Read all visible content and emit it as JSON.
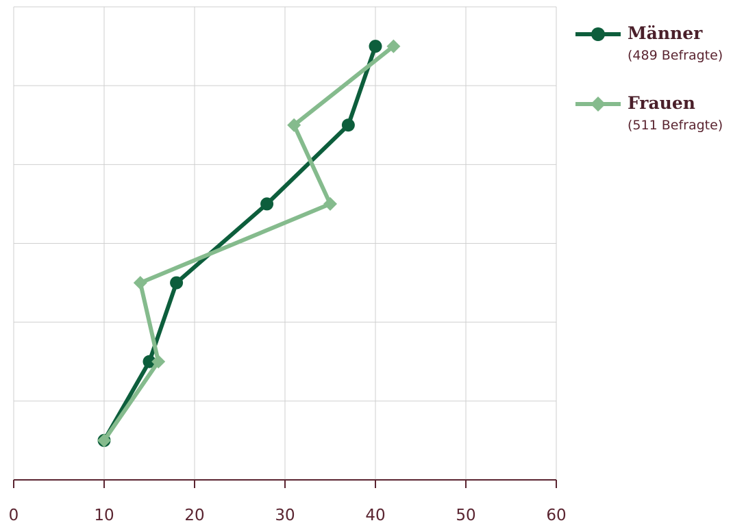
{
  "chart_data": {
    "type": "line",
    "title": "",
    "xlabel": "",
    "ylabel": "",
    "xlim": [
      0,
      60
    ],
    "xticks": [
      "0",
      "10",
      "20",
      "30",
      "40",
      "50",
      "60"
    ],
    "ylim": [
      0,
      6
    ],
    "grid": true,
    "legend_position": "top-right",
    "series": [
      {
        "name": "Männer",
        "subtitle": "(489 Befragte)",
        "color": "#0d5e3c",
        "marker": "circle",
        "x": [
          10,
          15,
          18,
          28,
          37,
          40
        ],
        "y": [
          0.5,
          1.5,
          2.5,
          3.5,
          4.5,
          5.5
        ]
      },
      {
        "name": "Frauen",
        "subtitle": "(511 Befragte)",
        "color": "#85bb8d",
        "marker": "diamond",
        "x": [
          10,
          16,
          14,
          35,
          31,
          42
        ],
        "y": [
          0.5,
          1.5,
          2.5,
          3.5,
          4.5,
          5.5
        ]
      }
    ]
  }
}
